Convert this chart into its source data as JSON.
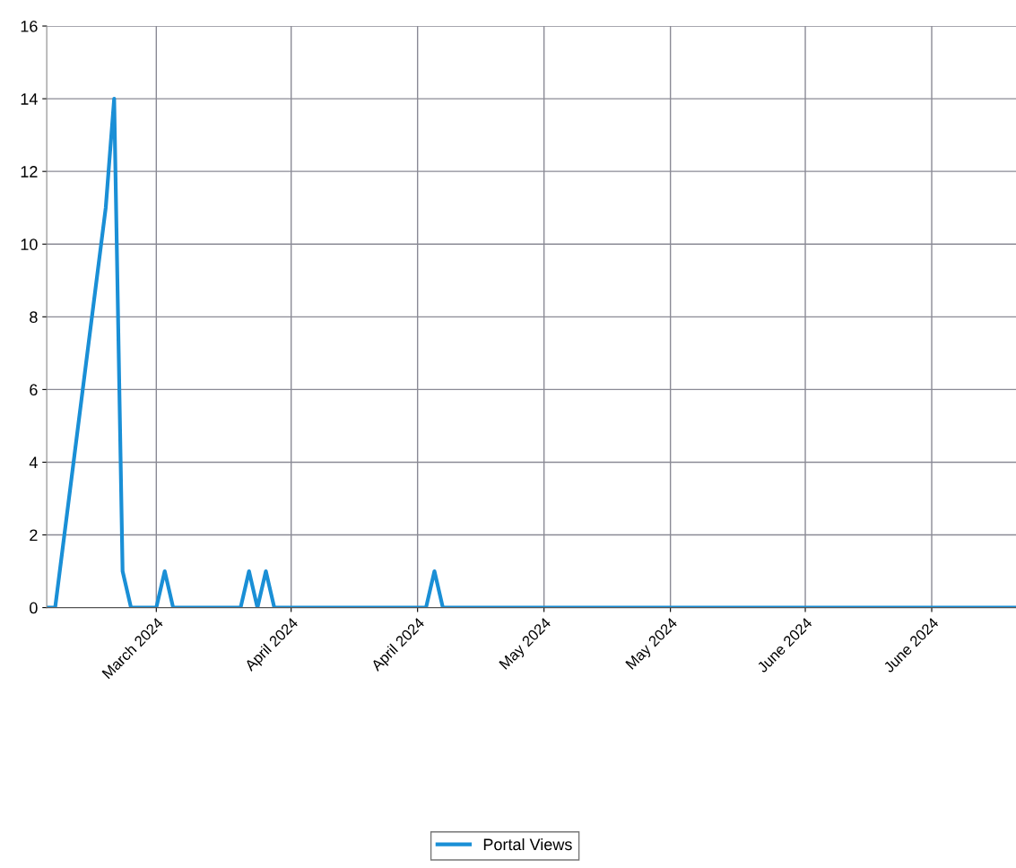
{
  "chart_data": {
    "type": "line",
    "x": [
      "2024-03-03",
      "2024-03-04",
      "2024-03-10",
      "2024-03-11",
      "2024-03-12",
      "2024-03-13",
      "2024-03-16",
      "2024-03-17",
      "2024-03-18",
      "2024-03-26",
      "2024-03-27",
      "2024-03-28",
      "2024-03-29",
      "2024-03-30",
      "2024-04-17",
      "2024-04-18",
      "2024-04-19",
      "2024-06-26"
    ],
    "series": [
      {
        "name": "Portal Views",
        "color": "#1a8fd6",
        "values": [
          0,
          0,
          11,
          14,
          1,
          0,
          0,
          1,
          0,
          0,
          1,
          0,
          1,
          0,
          0,
          1,
          0,
          0
        ]
      }
    ],
    "xlim": [
      "2024-03-03",
      "2024-06-26"
    ],
    "xticks": [
      {
        "value": "2024-03-16",
        "label": "March 2024"
      },
      {
        "value": "2024-04-01",
        "label": "April 2024"
      },
      {
        "value": "2024-04-16",
        "label": "April 2024"
      },
      {
        "value": "2024-05-01",
        "label": "May 2024"
      },
      {
        "value": "2024-05-16",
        "label": "May 2024"
      },
      {
        "value": "2024-06-01",
        "label": "June 2024"
      },
      {
        "value": "2024-06-16",
        "label": "June 2024"
      }
    ],
    "ylim": [
      0,
      16
    ],
    "yticks": [
      0,
      2,
      4,
      6,
      8,
      10,
      12,
      14,
      16
    ],
    "grid": true,
    "legend": "bottom",
    "marker": "none",
    "line_style": "solid"
  }
}
